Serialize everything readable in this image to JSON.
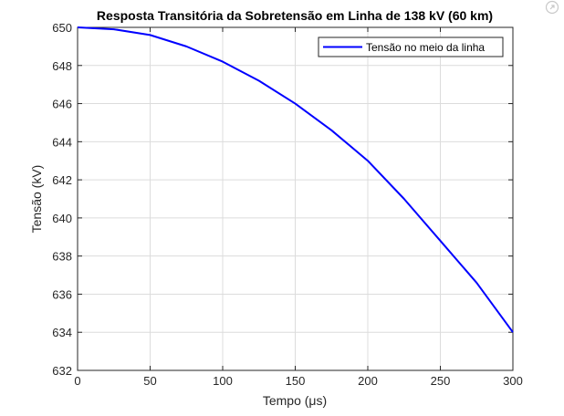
{
  "chart_data": {
    "type": "line",
    "title": "Resposta Transitória da Sobretensão em Linha de 138 kV (60 km)",
    "xlabel": "Tempo  (μs)",
    "ylabel": "Tensão (kV)",
    "xlim": [
      0,
      300
    ],
    "ylim": [
      632,
      650
    ],
    "xticks": [
      0,
      50,
      100,
      150,
      200,
      250,
      300
    ],
    "yticks": [
      632,
      634,
      636,
      638,
      640,
      642,
      644,
      646,
      648,
      650
    ],
    "grid": true,
    "legend_position": "top-right",
    "series": [
      {
        "name": "Tensão no meio da linha",
        "color": "#0000ff",
        "x": [
          0,
          25,
          50,
          75,
          100,
          125,
          150,
          175,
          200,
          225,
          250,
          275,
          300
        ],
        "y": [
          650.0,
          649.9,
          649.6,
          649.0,
          648.2,
          647.2,
          646.0,
          644.6,
          643.0,
          641.0,
          638.8,
          636.6,
          634.0
        ]
      }
    ]
  },
  "icons": {
    "corner": "external-link-icon"
  }
}
